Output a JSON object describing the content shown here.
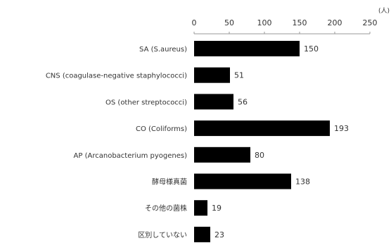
{
  "chart_data": {
    "type": "bar",
    "orientation": "horizontal",
    "axis_position": "top",
    "unit": "(人)",
    "categories": [
      "SA (S.aureus)",
      "CNS (coagulase-negative staphylococci)",
      "OS (other streptococci)",
      "CO (Coliforms)",
      "AP (Arcanobacterium pyogenes)",
      "酵母様真菌",
      "その他の菌株",
      "区別していない"
    ],
    "values": [
      150,
      51,
      56,
      193,
      80,
      138,
      19,
      23
    ],
    "xlim": [
      0,
      250
    ],
    "xticks": [
      0,
      50,
      100,
      150,
      200,
      250
    ],
    "bar_color": "#000000",
    "grid": false,
    "legend": "none"
  }
}
